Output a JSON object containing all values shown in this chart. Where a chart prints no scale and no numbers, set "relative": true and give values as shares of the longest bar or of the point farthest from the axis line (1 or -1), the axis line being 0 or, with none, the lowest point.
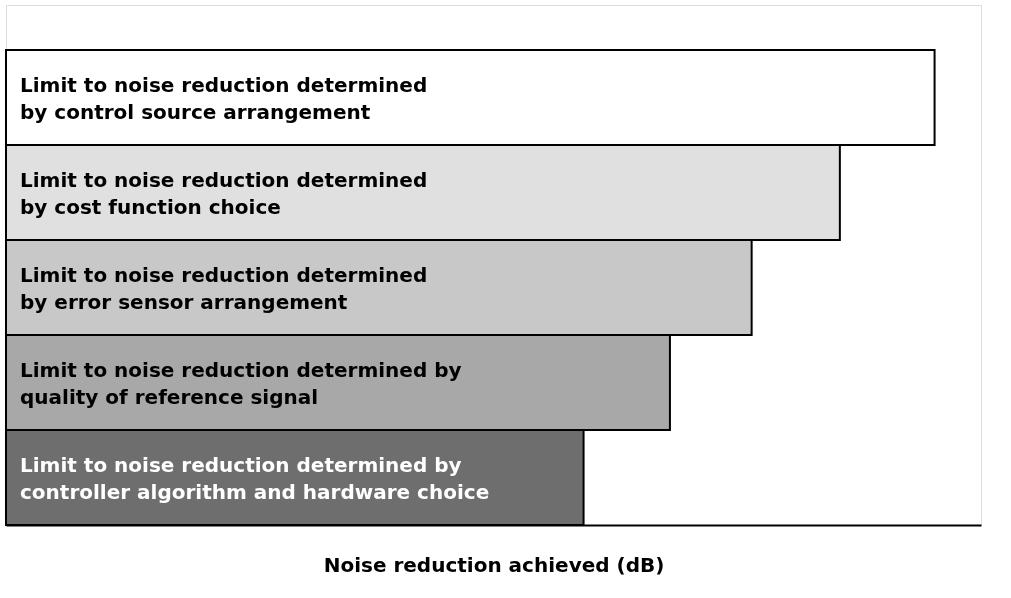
{
  "chart_data": {
    "type": "bar",
    "orientation": "horizontal",
    "relative": true,
    "xlabel": "Noise reduction achieved (dB)",
    "tick_labels": false,
    "grid": false,
    "categories": [
      "Limit to noise reduction determined\nby control source arrangement",
      "Limit to noise reduction determined\nby cost function choice",
      "Limit to noise reduction determined\nby error sensor arrangement",
      "Limit to noise reduction determined by\nquality of reference signal",
      "Limit to noise reduction determined by\ncontroller algorithm and hardware choice"
    ],
    "values": [
      1,
      0.898,
      0.803,
      0.715,
      0.622
    ],
    "colors": [
      "#ffffff",
      "#e0e0e0",
      "#c8c8c8",
      "#a8a8a8",
      "#6e6e6e"
    ]
  }
}
